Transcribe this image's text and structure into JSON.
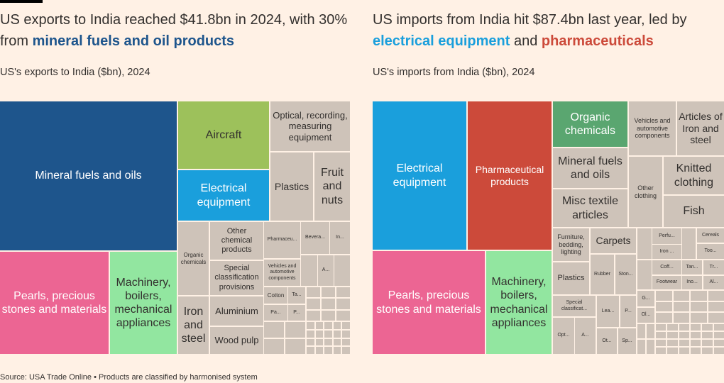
{
  "colors": {
    "background": "#fff1e5",
    "other": "#cec3b9",
    "navy": "#1e558c",
    "blue": "#1a9fdc",
    "red": "#cc4a3a",
    "pink": "#ec6593",
    "lightgreen": "#92e6a0",
    "green": "#9dc15b",
    "teal_green": "#5aa670"
  },
  "left": {
    "title_pre": "US exports to India reached $41.8bn in 2024, with 30% from ",
    "title_hl": "mineral fuels and oil products",
    "subtitle": "US's exports to India ($bn), 2024"
  },
  "right": {
    "title_pre": "US imports from India hit $87.4bn last year, led by ",
    "title_hl1": "electrical equipment",
    "title_mid": " and ",
    "title_hl2": "pharmaceuticals",
    "subtitle": "US's imports from India ($bn), 2024"
  },
  "source": "Source: USA Trade Online • Products are classified by harmonised system",
  "chart_data": [
    {
      "type": "treemap",
      "title": "US's exports to India ($bn), 2024",
      "total": 41.8,
      "items": [
        {
          "name": "Mineral fuels and oils",
          "value": 12.5,
          "color": "navy"
        },
        {
          "name": "Pearls, precious stones and materials",
          "value": 5.2,
          "color": "pink"
        },
        {
          "name": "Machinery, boilers, mechanical appliances",
          "value": 3.2,
          "color": "lightgreen"
        },
        {
          "name": "Aircraft",
          "value": 2.9,
          "color": "green"
        },
        {
          "name": "Electrical equipment",
          "value": 2.2,
          "color": "blue"
        },
        {
          "name": "Optical, recording, measuring equipment",
          "value": 1.9,
          "color": "other"
        },
        {
          "name": "Plastics",
          "value": 1.4,
          "color": "other"
        },
        {
          "name": "Fruit and nuts",
          "value": 1.1,
          "color": "other"
        },
        {
          "name": "Organic chemicals",
          "value": 1.1,
          "color": "other"
        },
        {
          "name": "Other chemical products",
          "value": 0.9,
          "color": "other"
        },
        {
          "name": "Special classification provisions",
          "value": 0.9,
          "color": "other"
        },
        {
          "name": "Iron and steel",
          "value": 0.8,
          "color": "other"
        },
        {
          "name": "Aluminium",
          "value": 0.7,
          "color": "other"
        },
        {
          "name": "Wood pulp",
          "value": 0.7,
          "color": "other"
        },
        {
          "name": "Pharmaceu...",
          "value": 0.6,
          "color": "other"
        },
        {
          "name": "Bevera...",
          "value": 0.4,
          "color": "other"
        },
        {
          "name": "In...",
          "value": 0.3,
          "color": "other"
        },
        {
          "name": "Vehicles and automotive components",
          "value": 0.45,
          "color": "other"
        },
        {
          "name": "A...",
          "value": 0.2,
          "color": "other"
        },
        {
          "name": "Cotton",
          "value": 0.2,
          "color": "other"
        },
        {
          "name": "Ta...",
          "value": 0.15,
          "color": "other"
        },
        {
          "name": "Pa...",
          "value": 0.2,
          "color": "other"
        },
        {
          "name": "P...",
          "value": 0.15,
          "color": "other"
        }
      ]
    },
    {
      "type": "treemap",
      "title": "US's imports from India ($bn), 2024",
      "total": 87.4,
      "items": [
        {
          "name": "Electrical equipment",
          "value": 13.7,
          "color": "blue"
        },
        {
          "name": "Pharmaceutical products",
          "value": 12.2,
          "color": "red"
        },
        {
          "name": "Pearls, precious stones and materials",
          "value": 11.4,
          "color": "pink"
        },
        {
          "name": "Machinery, boilers, mechanical appliances",
          "value": 6.6,
          "color": "lightgreen"
        },
        {
          "name": "Organic chemicals",
          "value": 3.3,
          "color": "teal_green"
        },
        {
          "name": "Vehicles and automotive components",
          "value": 2.5,
          "color": "other"
        },
        {
          "name": "Articles of Iron and steel",
          "value": 2.5,
          "color": "other"
        },
        {
          "name": "Mineral fuels and oils",
          "value": 2.9,
          "color": "other"
        },
        {
          "name": "Misc textile articles",
          "value": 2.8,
          "color": "other"
        },
        {
          "name": "Other clothing",
          "value": 2.3,
          "color": "other"
        },
        {
          "name": "Knitted clothing",
          "value": 2.2,
          "color": "other"
        },
        {
          "name": "Fish",
          "value": 1.9,
          "color": "other"
        },
        {
          "name": "Furniture, bedding, lighting",
          "value": 1.2,
          "color": "other"
        },
        {
          "name": "Carpets",
          "value": 1.1,
          "color": "other"
        },
        {
          "name": "Plastics",
          "value": 1.1,
          "color": "other"
        },
        {
          "name": "Rubber",
          "value": 0.9,
          "color": "other"
        },
        {
          "name": "Ston...",
          "value": 0.8,
          "color": "other"
        },
        {
          "name": "Special classificat...",
          "value": 0.9,
          "color": "other"
        },
        {
          "name": "Lea...",
          "value": 0.7,
          "color": "other"
        },
        {
          "name": "P...",
          "value": 0.5,
          "color": "other"
        },
        {
          "name": "Opt...",
          "value": 0.8,
          "color": "other"
        },
        {
          "name": "A...",
          "value": 0.7,
          "color": "other"
        },
        {
          "name": "Ot...",
          "value": 0.5,
          "color": "other"
        },
        {
          "name": "Sp...",
          "value": 0.45,
          "color": "other"
        },
        {
          "name": "Perfu...",
          "value": 0.45,
          "color": "other"
        },
        {
          "name": "Iron ...",
          "value": 0.4,
          "color": "other"
        },
        {
          "name": "Cereals",
          "value": 0.4,
          "color": "other"
        },
        {
          "name": "Too...",
          "value": 0.4,
          "color": "other"
        },
        {
          "name": "Coff...",
          "value": 0.4,
          "color": "other"
        },
        {
          "name": "Footwear",
          "value": 0.4,
          "color": "other"
        },
        {
          "name": "Tan...",
          "value": 0.3,
          "color": "other"
        },
        {
          "name": "Tr...",
          "value": 0.3,
          "color": "other"
        },
        {
          "name": "Ino...",
          "value": 0.3,
          "color": "other"
        },
        {
          "name": "Al...",
          "value": 0.3,
          "color": "other"
        },
        {
          "name": "G...",
          "value": 0.25,
          "color": "other"
        },
        {
          "name": "Ol...",
          "value": 0.25,
          "color": "other"
        }
      ]
    }
  ]
}
